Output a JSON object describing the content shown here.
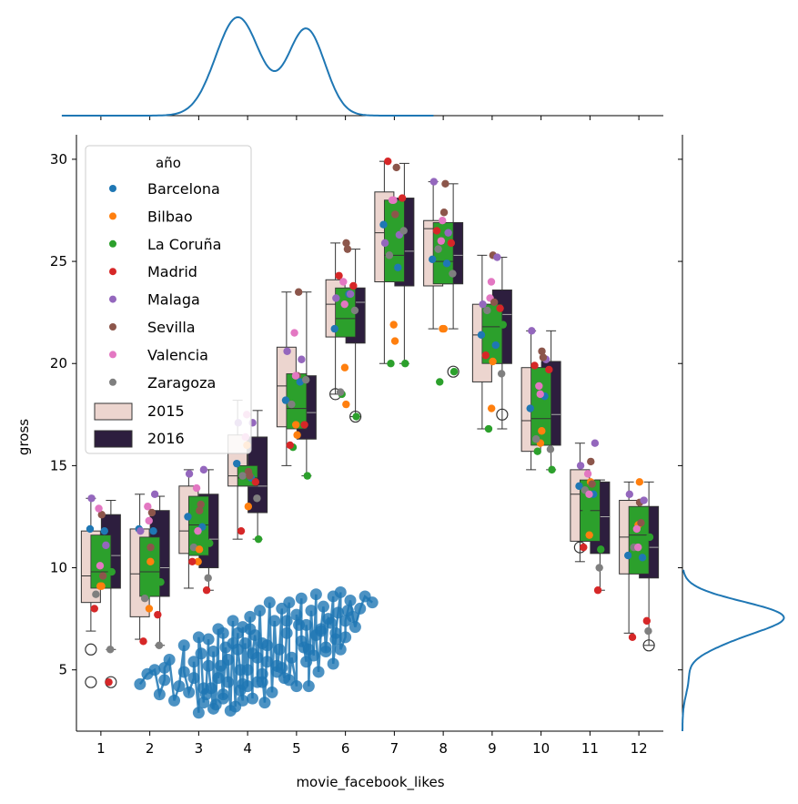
{
  "chart_data": {
    "type": "boxplot-jointplot",
    "xlabel": "movie_facebook_likes",
    "ylabel": "gross",
    "categories": [
      "1",
      "2",
      "3",
      "4",
      "5",
      "6",
      "7",
      "8",
      "9",
      "10",
      "11",
      "12"
    ],
    "ylim": [
      2,
      31.2
    ],
    "yticks": [
      5,
      10,
      15,
      20,
      25,
      30
    ],
    "legend": {
      "title": "año",
      "placement": "top-left",
      "point_entries": [
        {
          "label": "Barcelona",
          "color": "#1f77b4"
        },
        {
          "label": "Bilbao",
          "color": "#ff7f0e"
        },
        {
          "label": "La Coruña",
          "color": "#2ca02c"
        },
        {
          "label": "Madrid",
          "color": "#d62728"
        },
        {
          "label": "Malaga",
          "color": "#9467bd"
        },
        {
          "label": "Sevilla",
          "color": "#8c564b"
        },
        {
          "label": "Valencia",
          "color": "#e377c2"
        },
        {
          "label": "Zaragoza",
          "color": "#7f7f7f"
        }
      ],
      "box_entries": [
        {
          "label": "2015",
          "color": "#ecd5cf"
        },
        {
          "label": "2016",
          "color": "#2d1e3e"
        }
      ]
    },
    "box_series": [
      {
        "name": "2015",
        "color": "#ecd5cf",
        "boxes": [
          {
            "q1": 8.3,
            "med": 9.6,
            "q3": 11.8,
            "lo": 6.9,
            "hi": 13.4,
            "fliers": [
              6.0,
              4.4
            ]
          },
          {
            "q1": 7.6,
            "med": 9.7,
            "q3": 11.9,
            "lo": 6.5,
            "hi": 13.6,
            "fliers": []
          },
          {
            "q1": 10.7,
            "med": 11.8,
            "q3": 14.0,
            "lo": 9.0,
            "hi": 14.8,
            "fliers": []
          },
          {
            "q1": 14.0,
            "med": 14.5,
            "q3": 16.5,
            "lo": 11.4,
            "hi": 18.2,
            "fliers": []
          },
          {
            "q1": 16.9,
            "med": 18.9,
            "q3": 20.8,
            "lo": 15.0,
            "hi": 23.5,
            "fliers": []
          },
          {
            "q1": 21.3,
            "med": 22.9,
            "q3": 24.1,
            "lo": 18.5,
            "hi": 25.9,
            "fliers": [
              18.5
            ]
          },
          {
            "q1": 24.0,
            "med": 26.4,
            "q3": 28.4,
            "lo": 20.0,
            "hi": 29.9,
            "fliers": []
          },
          {
            "q1": 23.8,
            "med": 26.6,
            "q3": 27.0,
            "lo": 21.7,
            "hi": 28.9,
            "fliers": []
          },
          {
            "q1": 19.1,
            "med": 21.4,
            "q3": 22.9,
            "lo": 16.8,
            "hi": 25.3,
            "fliers": []
          },
          {
            "q1": 15.7,
            "med": 17.2,
            "q3": 19.8,
            "lo": 14.8,
            "hi": 21.6,
            "fliers": []
          },
          {
            "q1": 11.3,
            "med": 13.6,
            "q3": 14.8,
            "lo": 10.3,
            "hi": 16.1,
            "fliers": [
              11.0
            ]
          },
          {
            "q1": 9.7,
            "med": 11.5,
            "q3": 13.3,
            "lo": 6.8,
            "hi": 14.2,
            "fliers": []
          }
        ]
      },
      {
        "name": "2016",
        "color": "#2d1e3e",
        "boxes": [
          {
            "q1": 9.0,
            "med": 10.6,
            "q3": 12.6,
            "lo": 6.0,
            "hi": 13.3,
            "fliers": [
              4.4
            ]
          },
          {
            "q1": 8.6,
            "med": 10.0,
            "q3": 12.8,
            "lo": 6.2,
            "hi": 13.5,
            "fliers": []
          },
          {
            "q1": 10.0,
            "med": 11.4,
            "q3": 13.6,
            "lo": 8.9,
            "hi": 14.8,
            "fliers": []
          },
          {
            "q1": 12.7,
            "med": 14.0,
            "q3": 16.4,
            "lo": 11.4,
            "hi": 17.7,
            "fliers": []
          },
          {
            "q1": 16.3,
            "med": 17.6,
            "q3": 19.4,
            "lo": 14.5,
            "hi": 23.5,
            "fliers": []
          },
          {
            "q1": 21.0,
            "med": 23.0,
            "q3": 23.7,
            "lo": 17.4,
            "hi": 25.6,
            "fliers": [
              17.4
            ]
          },
          {
            "q1": 23.8,
            "med": 25.5,
            "q3": 28.1,
            "lo": 20.0,
            "hi": 29.8,
            "fliers": []
          },
          {
            "q1": 23.9,
            "med": 25.3,
            "q3": 26.9,
            "lo": 21.7,
            "hi": 28.8,
            "fliers": [
              19.6
            ]
          },
          {
            "q1": 20.0,
            "med": 22.4,
            "q3": 23.6,
            "lo": 16.8,
            "hi": 25.2,
            "fliers": [
              17.5
            ]
          },
          {
            "q1": 16.0,
            "med": 17.5,
            "q3": 20.1,
            "lo": 14.8,
            "hi": 21.6,
            "fliers": []
          },
          {
            "q1": 10.7,
            "med": 12.5,
            "q3": 14.2,
            "lo": 8.9,
            "hi": 14.3,
            "fliers": []
          },
          {
            "q1": 9.5,
            "med": 11.0,
            "q3": 13.0,
            "lo": 6.2,
            "hi": 14.2,
            "fliers": [
              6.2
            ]
          }
        ]
      }
    ],
    "green_box_series": {
      "color": "#2ca02c",
      "boxes": [
        {
          "q1": 9.0,
          "med": 9.8,
          "q3": 11.6
        },
        {
          "q1": 8.6,
          "med": 9.8,
          "q3": 11.5
        },
        {
          "q1": 10.6,
          "med": 12.1,
          "q3": 13.5
        },
        {
          "q1": 14.0,
          "med": 14.4,
          "q3": 15.0
        },
        {
          "q1": 16.8,
          "med": 17.8,
          "q3": 19.5
        },
        {
          "q1": 21.3,
          "med": 22.2,
          "q3": 23.7
        },
        {
          "q1": 24.0,
          "med": 25.3,
          "q3": 28.0
        },
        {
          "q1": 23.9,
          "med": 25.0,
          "q3": 26.9
        },
        {
          "q1": 20.0,
          "med": 21.8,
          "q3": 22.9
        },
        {
          "q1": 16.0,
          "med": 17.3,
          "q3": 19.8
        },
        {
          "q1": 11.3,
          "med": 12.8,
          "q3": 14.3
        },
        {
          "q1": 9.7,
          "med": 11.6,
          "q3": 13.0
        }
      ]
    },
    "strip_points": [
      [
        [
          11.9,
          9.1,
          11.4,
          8.0,
          13.4,
          12.6,
          12.9,
          8.7
        ],
        [
          11.8,
          9.1,
          9.8,
          4.4,
          11.1,
          9.6,
          10.1,
          6.0
        ]
      ],
      [
        [
          11.9,
          8.0,
          8.6,
          6.4,
          11.8,
          11.0,
          13.0,
          8.5
        ],
        [
          11.8,
          10.3,
          9.3,
          7.7,
          13.6,
          12.7,
          12.3,
          6.2
        ]
      ],
      [
        [
          12.5,
          10.3,
          11.0,
          10.3,
          14.6,
          12.8,
          13.9,
          11.0
        ],
        [
          12.0,
          10.9,
          11.2,
          8.9,
          14.8,
          13.1,
          11.8,
          9.5
        ]
      ],
      [
        [
          15.1,
          16.0,
          14.4,
          11.8,
          17.1,
          14.7,
          16.4,
          14.5
        ],
        [
          14.4,
          13.0,
          11.4,
          14.2,
          17.1,
          14.5,
          17.5,
          13.4
        ]
      ],
      [
        [
          18.2,
          17.0,
          15.9,
          16.0,
          20.6,
          19.4,
          21.5,
          18.0
        ],
        [
          19.1,
          16.5,
          14.5,
          17.0,
          20.2,
          23.5,
          19.4,
          19.2
        ]
      ],
      [
        [
          21.7,
          19.8,
          18.5,
          24.3,
          23.2,
          25.9,
          24.0,
          18.6
        ],
        [
          23.4,
          18.0,
          17.4,
          23.8,
          23.4,
          25.6,
          22.9,
          22.6
        ]
      ],
      [
        [
          26.8,
          21.9,
          20.0,
          29.9,
          25.9,
          27.3,
          28.0,
          25.3
        ],
        [
          24.7,
          21.1,
          20.0,
          28.1,
          26.3,
          29.6,
          28.0,
          26.5
        ]
      ],
      [
        [
          25.1,
          21.7,
          19.1,
          26.5,
          28.9,
          27.4,
          26.0,
          25.6
        ],
        [
          24.9,
          21.7,
          19.6,
          25.9,
          26.4,
          28.8,
          27.0,
          24.4
        ]
      ],
      [
        [
          21.4,
          17.8,
          16.8,
          20.4,
          22.9,
          25.3,
          23.2,
          22.6
        ],
        [
          20.9,
          20.1,
          21.9,
          22.7,
          25.2,
          23.0,
          24.0,
          19.5
        ]
      ],
      [
        [
          17.8,
          16.1,
          15.7,
          19.9,
          21.6,
          20.6,
          18.9,
          16.3
        ],
        [
          18.4,
          16.7,
          14.8,
          19.7,
          20.2,
          20.3,
          18.5,
          15.8
        ]
      ],
      [
        [
          14.0,
          11.6,
          12.8,
          11.0,
          15.0,
          15.2,
          14.6,
          13.8
        ],
        [
          13.6,
          14.2,
          10.9,
          8.9,
          16.1,
          14.1,
          13.6,
          10.0
        ]
      ],
      [
        [
          10.6,
          12.1,
          10.6,
          6.6,
          13.6,
          13.2,
          11.9,
          11.0
        ],
        [
          10.5,
          14.2,
          11.5,
          7.4,
          13.3,
          12.2,
          11.0,
          6.9
        ]
      ]
    ],
    "scatter_x": [
      1.8,
      1.95,
      2.1,
      2.2,
      2.3,
      2.4,
      2.5,
      2.6,
      2.7,
      2.8,
      2.9,
      3.0,
      3.05,
      3.1,
      3.2,
      3.25,
      3.3,
      3.4,
      3.45,
      3.5,
      3.55,
      3.6,
      3.7,
      3.75,
      3.8,
      3.85,
      3.9,
      3.95,
      4.0,
      4.05,
      4.1,
      4.2,
      4.25,
      4.3,
      4.4,
      4.45,
      4.5,
      4.55,
      4.6,
      4.7,
      4.75,
      4.8,
      4.85,
      4.9,
      5.0,
      5.05,
      5.1,
      5.2,
      5.25,
      5.3,
      5.4,
      5.45,
      5.5,
      5.55,
      5.6,
      5.7,
      5.75,
      5.8,
      5.85,
      5.9,
      6.0,
      6.05,
      6.1,
      6.2,
      6.3,
      6.4,
      6.55,
      3.0,
      3.3,
      3.5,
      3.7,
      3.9,
      4.1,
      4.3,
      3.2,
      3.4,
      3.6,
      3.8,
      4.0,
      4.2,
      4.4,
      4.6,
      4.8,
      5.0,
      5.2,
      5.4,
      5.6,
      5.8,
      6.0,
      3.1,
      3.5,
      3.9,
      4.3,
      4.7,
      5.1,
      5.5,
      5.9,
      2.3,
      2.7,
      2.9,
      4.15,
      5.15,
      5.35,
      5.65,
      4.65,
      4.05,
      3.15,
      3.35,
      3.65,
      3.85,
      4.35,
      4.85,
      5.25,
      5.75,
      6.15
    ],
    "scatter_y": [
      4.3,
      4.8,
      5.0,
      3.8,
      4.5,
      5.5,
      3.5,
      4.2,
      6.2,
      3.9,
      4.6,
      2.9,
      5.8,
      3.4,
      6.5,
      4.1,
      3.1,
      7.0,
      5.2,
      3.6,
      6.1,
      4.4,
      7.4,
      3.2,
      6.8,
      5.0,
      3.5,
      6.3,
      4.2,
      7.6,
      3.6,
      5.6,
      7.9,
      4.4,
      6.2,
      8.3,
      3.9,
      7.4,
      5.2,
      8.0,
      4.6,
      6.8,
      8.3,
      5.6,
      4.2,
      7.2,
      8.5,
      5.4,
      6.0,
      7.9,
      8.7,
      4.9,
      6.9,
      8.1,
      5.9,
      7.3,
      8.6,
      6.5,
      7.8,
      8.8,
      6.6,
      7.9,
      8.4,
      7.1,
      8.0,
      8.6,
      8.3,
      6.6,
      5.9,
      6.8,
      6.3,
      7.1,
      5.8,
      6.3,
      5.2,
      4.6,
      5.5,
      6.0,
      5.0,
      4.4,
      5.4,
      4.9,
      7.4,
      7.7,
      7.2,
      6.7,
      6.1,
      6.8,
      7.4,
      4.1,
      3.8,
      4.3,
      4.8,
      5.1,
      6.4,
      7.0,
      6.0,
      5.1,
      4.9,
      5.4,
      6.7,
      6.1,
      5.7,
      7.5,
      6.0,
      7.0,
      3.8,
      3.3,
      3.0,
      4.0,
      3.4,
      4.5,
      4.2,
      5.3,
      7.6
    ],
    "kde_x_top": {
      "peaks": [
        [
          3.8,
          1.0,
          0.45
        ],
        [
          5.2,
          0.88,
          0.38
        ]
      ]
    },
    "kde_y_right": {
      "peaks": [
        [
          7.6,
          1.0,
          0.75
        ],
        [
          6.3,
          0.22,
          0.6
        ],
        [
          4.6,
          0.06,
          0.8
        ]
      ]
    }
  }
}
